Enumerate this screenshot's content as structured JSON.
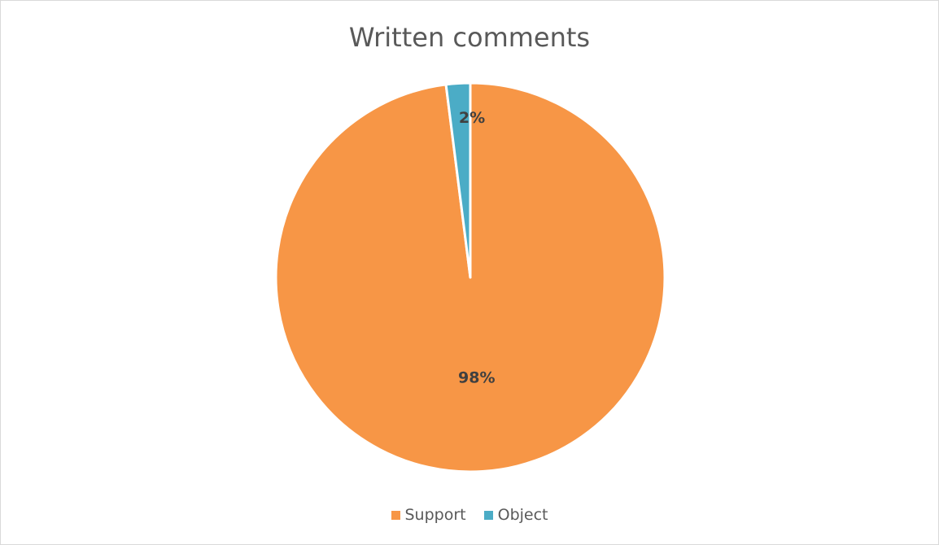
{
  "chart_data": {
    "type": "pie",
    "title": "Written comments",
    "categories": [
      "Support",
      "Object"
    ],
    "values": [
      98,
      2
    ],
    "data_labels": [
      "98%",
      "2%"
    ],
    "colors": [
      "#F79646",
      "#4BACC6"
    ],
    "legend_position": "bottom",
    "slice_border_color": "#ffffff"
  }
}
